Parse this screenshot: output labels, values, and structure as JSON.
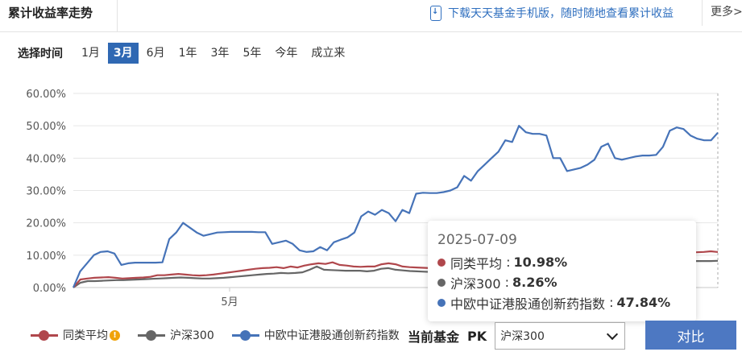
{
  "header": {
    "title": "累计收益率走势",
    "download_text": "下载天天基金手机版，随时随地查看累计收益",
    "more_label": "更多>"
  },
  "range": {
    "label": "选择时间",
    "options": [
      "1月",
      "3月",
      "6月",
      "1年",
      "3年",
      "5年",
      "今年",
      "成立来"
    ],
    "active": "3月"
  },
  "colors": {
    "peer": "#b0474c",
    "hs300": "#666666",
    "index": "#4673b8",
    "active_tab": "#2f68b3"
  },
  "chart_data": {
    "type": "line",
    "x_tick_labels": [
      "5月"
    ],
    "y_tick_labels": [
      "0.00%",
      "10.00%",
      "20.00%",
      "30.00%",
      "40.00%",
      "50.00%",
      "60.00%"
    ],
    "ylim": [
      0,
      60
    ],
    "series": [
      {
        "name": "中欧中证港股通创新药指数",
        "values": [
          0,
          5,
          7.5,
          10,
          11,
          11.2,
          10.5,
          7,
          7.5,
          7.7,
          7.7,
          7.7,
          7.7,
          7.8,
          15,
          17,
          20,
          18.5,
          17,
          16,
          16.5,
          17,
          17.1,
          17.2,
          17.2,
          17.2,
          17.2,
          17.1,
          17.1,
          13.5,
          14,
          14.5,
          13.5,
          11.5,
          11,
          11.2,
          12.5,
          11.5,
          14,
          14.8,
          15.5,
          17,
          22,
          23.5,
          22.5,
          24,
          23,
          20.5,
          24,
          23,
          29,
          29.3,
          29.2,
          29.2,
          29.5,
          30,
          31,
          34.5,
          33,
          36,
          38,
          40,
          42,
          45.5,
          45,
          50,
          48,
          47.5,
          47.5,
          47,
          40,
          40,
          36,
          36.5,
          37,
          38,
          39.5,
          43.5,
          44.5,
          40,
          39.5,
          40,
          40.5,
          40.8,
          40.8,
          41,
          43.5,
          48.5,
          49.5,
          49,
          47,
          46,
          45.5,
          45.5,
          47.84
        ]
      },
      {
        "name": "同类平均",
        "values": [
          0,
          2.5,
          2.8,
          3,
          3.1,
          3.2,
          3,
          2.8,
          2.9,
          3,
          3.1,
          3.3,
          3.8,
          3.8,
          4,
          4.2,
          4,
          3.8,
          3.7,
          3.8,
          4,
          4.3,
          4.6,
          4.9,
          5.2,
          5.5,
          5.8,
          6,
          6.1,
          6.3,
          6,
          6.5,
          6.2,
          6.8,
          7.2,
          7.5,
          7.3,
          7.8,
          7,
          6.8,
          6.5,
          6.4,
          6.5,
          6.5,
          7.2,
          7.5,
          7.2,
          6.5,
          6.3,
          6.2,
          6.1,
          6,
          5.8,
          5.8,
          6,
          6.5,
          7,
          7,
          7,
          7.5,
          8,
          8.5,
          9,
          9.5,
          10,
          10,
          9.8,
          9.5,
          9.5,
          9.6,
          9.8,
          10,
          10,
          10.2,
          10.3,
          10.5,
          10.5,
          10.5,
          10.5,
          10.5,
          10.4,
          10.5,
          10.5,
          10.6,
          10.6,
          10.6,
          10.7,
          10.8,
          10.8,
          10.9,
          11,
          11.2,
          10.98
        ]
      },
      {
        "name": "沪深300",
        "values": [
          0,
          1.5,
          2,
          2,
          2.1,
          2.2,
          2.3,
          2.3,
          2.4,
          2.5,
          2.6,
          2.7,
          2.8,
          2.9,
          3,
          3.1,
          3,
          2.9,
          2.8,
          2.8,
          2.9,
          3,
          3.2,
          3.4,
          3.6,
          3.8,
          4,
          4.2,
          4.3,
          4.5,
          4.4,
          4.5,
          4.7,
          5.5,
          6.5,
          5.5,
          5.4,
          5.3,
          5.2,
          5.2,
          5.2,
          5,
          5.2,
          5.8,
          6,
          5.5,
          5.3,
          5.1,
          5,
          4.9,
          4.8,
          4.8,
          4.9,
          5,
          5.2,
          5.5,
          5.8,
          6,
          6.2,
          6.5,
          6.7,
          7,
          7.2,
          7.3,
          7.5,
          7.5,
          7.5,
          7.6,
          7.6,
          7.7,
          7.7,
          7.8,
          7.8,
          7.9,
          7.9,
          8,
          8,
          8,
          8,
          8.1,
          8.1,
          8.1,
          8.2,
          8.2,
          8.2,
          8.2,
          8.2,
          8.2,
          8.2,
          8.2,
          8.26
        ]
      }
    ]
  },
  "tooltip": {
    "date": "2025-07-09",
    "rows": [
      {
        "label": "同类平均",
        "value": "10.98%"
      },
      {
        "label": "沪深300",
        "value": "8.26%"
      },
      {
        "label": "中欧中证港股通创新药指数",
        "value": "47.84%"
      }
    ]
  },
  "legend": {
    "items": [
      "同类平均",
      "沪深300",
      "中欧中证港股通创新药指数"
    ]
  },
  "pk": {
    "label": "当前基金",
    "pk_text": "PK",
    "select_value": "沪深300",
    "compare_label": "对比"
  }
}
